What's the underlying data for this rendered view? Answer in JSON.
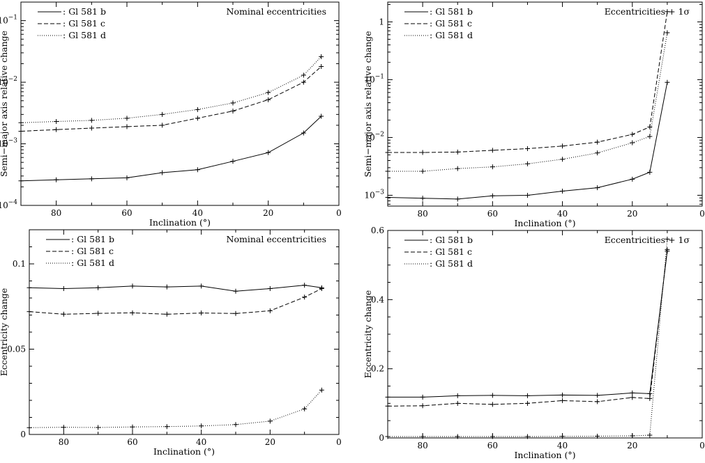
{
  "chart_data": [
    {
      "type": "line",
      "panel": "top-left",
      "annotation": "Nominal eccentricities",
      "xlabel": "Inclination (°)",
      "ylabel": "Semi−major axis relative change",
      "xlim": [
        90,
        0
      ],
      "yscale": "log",
      "ylim": [
        0.0001,
        0.2
      ],
      "xticks": [
        80,
        60,
        40,
        20,
        0
      ],
      "yticks": [
        {
          "v": 0.0001,
          "b": "10",
          "e": "−4"
        },
        {
          "v": 0.001,
          "b": "10",
          "e": "−3"
        },
        {
          "v": 0.01,
          "b": "10",
          "e": "−2"
        },
        {
          "v": 0.1,
          "b": "10",
          "e": "−1"
        }
      ],
      "legend": "top-left",
      "series": [
        {
          "name": "Gl 581 b",
          "dash": "solid",
          "x": [
            90,
            80,
            70,
            60,
            50,
            40,
            30,
            20,
            10,
            5
          ],
          "values": [
            0.00025,
            0.00026,
            0.00027,
            0.00028,
            0.00034,
            0.00038,
            0.00052,
            0.00072,
            0.0015,
            0.0028
          ]
        },
        {
          "name": "Gl 581 c",
          "dash": "dashed",
          "x": [
            90,
            80,
            70,
            60,
            50,
            40,
            30,
            20,
            10,
            5
          ],
          "values": [
            0.0016,
            0.0017,
            0.0018,
            0.0019,
            0.002,
            0.0026,
            0.0034,
            0.0052,
            0.01,
            0.018
          ]
        },
        {
          "name": "Gl 581 d",
          "dash": "dotted",
          "x": [
            90,
            80,
            70,
            60,
            50,
            40,
            30,
            20,
            10,
            5
          ],
          "values": [
            0.0022,
            0.0023,
            0.0024,
            0.0026,
            0.003,
            0.0036,
            0.0046,
            0.0068,
            0.013,
            0.026
          ]
        }
      ]
    },
    {
      "type": "line",
      "panel": "top-right",
      "annotation": "Eccentricities + 1σ",
      "xlabel": "Inclination (°)",
      "ylabel": "Semi−major axis relative change",
      "xlim": [
        90,
        0
      ],
      "yscale": "log",
      "ylim": [
        0.00065,
        2.2
      ],
      "xticks": [
        80,
        60,
        40,
        20,
        0
      ],
      "yticks": [
        {
          "v": 0.001,
          "b": "10",
          "e": "−3"
        },
        {
          "v": 0.01,
          "b": "10",
          "e": "−2"
        },
        {
          "v": 0.1,
          "b": "10",
          "e": "−1"
        },
        {
          "v": 1,
          "b": "1",
          "e": ""
        }
      ],
      "legend": "top-left",
      "series": [
        {
          "name": "Gl 581 b",
          "dash": "solid",
          "x": [
            90,
            80,
            70,
            60,
            50,
            40,
            30,
            20,
            15,
            10
          ],
          "values": [
            0.00092,
            0.00089,
            0.00086,
            0.00098,
            0.001,
            0.00118,
            0.00135,
            0.0019,
            0.0025,
            0.09
          ]
        },
        {
          "name": "Gl 581 c",
          "dash": "dashed",
          "x": [
            90,
            80,
            70,
            60,
            50,
            40,
            30,
            20,
            15,
            10
          ],
          "values": [
            0.0055,
            0.0055,
            0.0056,
            0.006,
            0.0064,
            0.0071,
            0.0083,
            0.0113,
            0.0152,
            1.5
          ]
        },
        {
          "name": "Gl 581 d",
          "dash": "dotted",
          "x": [
            90,
            80,
            70,
            60,
            50,
            40,
            30,
            20,
            15,
            10
          ],
          "values": [
            0.0026,
            0.0026,
            0.0029,
            0.0031,
            0.0035,
            0.0042,
            0.0054,
            0.0081,
            0.0104,
            0.65
          ]
        }
      ]
    },
    {
      "type": "line",
      "panel": "bottom-left",
      "annotation": "Nominal eccentricities",
      "xlabel": "Inclination (°)",
      "ylabel": "Eccentricity change",
      "xlim": [
        90,
        0
      ],
      "yscale": "linear",
      "ylim": [
        0,
        0.12
      ],
      "xticks": [
        80,
        60,
        40,
        20,
        0
      ],
      "yticks": [
        {
          "v": 0,
          "label": "0"
        },
        {
          "v": 0.05,
          "label": "0.05"
        },
        {
          "v": 0.1,
          "label": "0.1"
        }
      ],
      "legend": "top-left",
      "series": [
        {
          "name": "Gl 581 b",
          "dash": "solid",
          "x": [
            90,
            80,
            70,
            60,
            50,
            40,
            30,
            20,
            10,
            5
          ],
          "values": [
            0.086,
            0.0855,
            0.086,
            0.087,
            0.0865,
            0.087,
            0.084,
            0.0855,
            0.0875,
            0.086
          ]
        },
        {
          "name": "Gl 581 c",
          "dash": "dashed",
          "x": [
            90,
            80,
            70,
            60,
            50,
            40,
            30,
            20,
            10,
            5
          ],
          "values": [
            0.072,
            0.0705,
            0.071,
            0.0713,
            0.0705,
            0.0712,
            0.0709,
            0.0725,
            0.0805,
            0.0855
          ]
        },
        {
          "name": "Gl 581 d",
          "dash": "dotted",
          "x": [
            90,
            80,
            70,
            60,
            50,
            40,
            30,
            20,
            10,
            5
          ],
          "values": [
            0.004,
            0.0042,
            0.0041,
            0.0044,
            0.0046,
            0.005,
            0.0058,
            0.0078,
            0.015,
            0.026
          ]
        }
      ]
    },
    {
      "type": "line",
      "panel": "bottom-right",
      "annotation": "Eccentricities + 1σ",
      "xlabel": "Inclination (°)",
      "ylabel": "Eccentricity change",
      "xlim": [
        90,
        0
      ],
      "yscale": "linear",
      "ylim": [
        0,
        0.6
      ],
      "xticks": [
        80,
        60,
        40,
        20,
        0
      ],
      "yticks": [
        {
          "v": 0,
          "label": "0"
        },
        {
          "v": 0.2,
          "label": "0.2"
        },
        {
          "v": 0.4,
          "label": "0.4"
        },
        {
          "v": 0.6,
          "label": "0.6"
        }
      ],
      "legend": "top-left",
      "series": [
        {
          "name": "Gl 581 b",
          "dash": "solid",
          "x": [
            90,
            80,
            70,
            60,
            50,
            40,
            30,
            20,
            15,
            10
          ],
          "values": [
            0.118,
            0.118,
            0.122,
            0.123,
            0.122,
            0.124,
            0.123,
            0.13,
            0.128,
            0.54
          ]
        },
        {
          "name": "Gl 581 c",
          "dash": "dashed",
          "x": [
            90,
            80,
            70,
            60,
            50,
            40,
            30,
            20,
            15,
            10
          ],
          "values": [
            0.092,
            0.093,
            0.1,
            0.097,
            0.1,
            0.108,
            0.105,
            0.117,
            0.114,
            0.545
          ]
        },
        {
          "name": "Gl 581 d",
          "dash": "dotted",
          "x": [
            90,
            80,
            70,
            60,
            50,
            40,
            30,
            20,
            15,
            10
          ],
          "values": [
            0.004,
            0.004,
            0.004,
            0.004,
            0.004,
            0.0045,
            0.005,
            0.006,
            0.008,
            0.575
          ]
        }
      ]
    }
  ]
}
